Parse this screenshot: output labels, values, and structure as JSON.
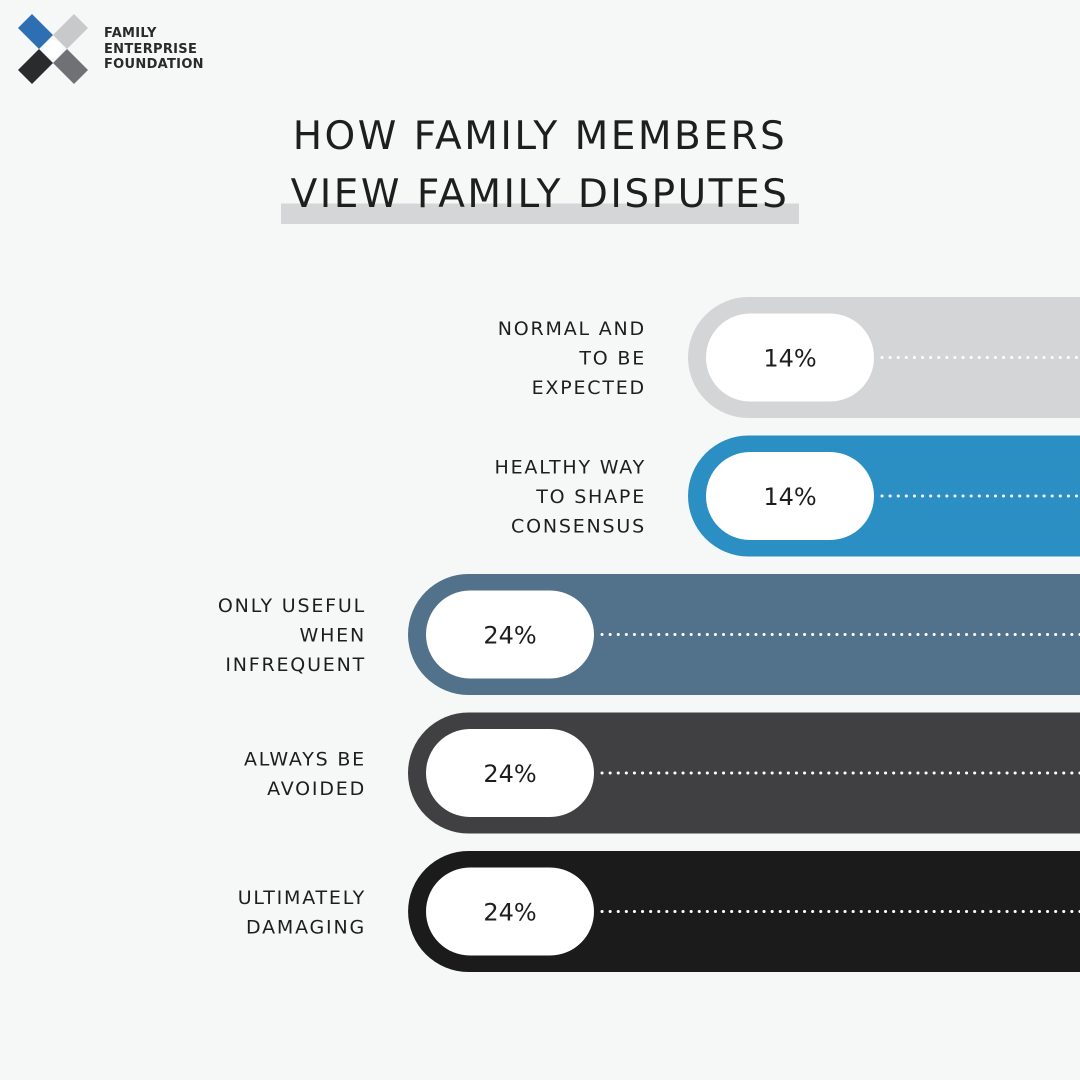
{
  "brand": {
    "name_lines": [
      "FAMILY",
      "ENTERPRISE",
      "FOUNDATION"
    ],
    "logo_colors": {
      "blue": "#2e6eb3",
      "light_grey": "#c8c9cb",
      "dark": "#2a2b2d",
      "mid_grey": "#707174"
    }
  },
  "title": {
    "line1": "HOW FAMILY MEMBERS",
    "line2": "VIEW FAMILY DISPUTES"
  },
  "chart_data": {
    "type": "bar",
    "orientation": "horizontal",
    "title": "HOW FAMILY MEMBERS VIEW FAMILY DISPUTES",
    "categories": [
      [
        "NORMAL AND",
        "TO BE",
        "EXPECTED"
      ],
      [
        "HEALTHY WAY",
        "TO SHAPE",
        "CONSENSUS"
      ],
      [
        "ONLY USEFUL",
        "WHEN",
        "INFREQUENT"
      ],
      [
        "ALWAYS BE",
        "AVOIDED"
      ],
      [
        "ULTIMATELY",
        "DAMAGING"
      ]
    ],
    "values": [
      14,
      14,
      24,
      24,
      24
    ],
    "value_labels": [
      "14%",
      "14%",
      "24%",
      "24%",
      "24%"
    ],
    "colors": [
      "#d4d5d7",
      "#2b8fc4",
      "#52718a",
      "#404042",
      "#1b1b1b"
    ],
    "xlabel": "",
    "ylabel": "",
    "xlim": [
      0,
      37.5
    ]
  }
}
